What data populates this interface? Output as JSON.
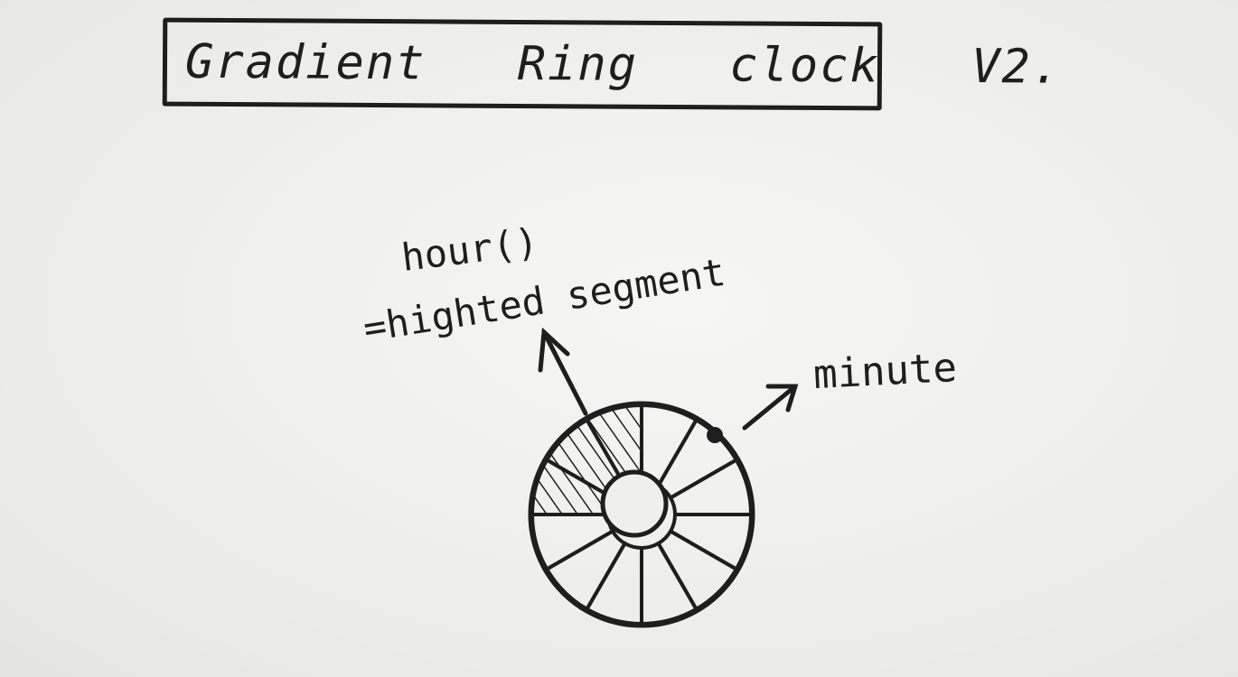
{
  "title": "Gradient Ring clock V2.",
  "annotations": {
    "hour_line1": "hour()",
    "hour_line2": "=highted segment",
    "minute": "minute"
  },
  "clock": {
    "segments": 12,
    "highlighted_segments": [
      9,
      10,
      11
    ],
    "ink_color": "#1e1e1e"
  }
}
